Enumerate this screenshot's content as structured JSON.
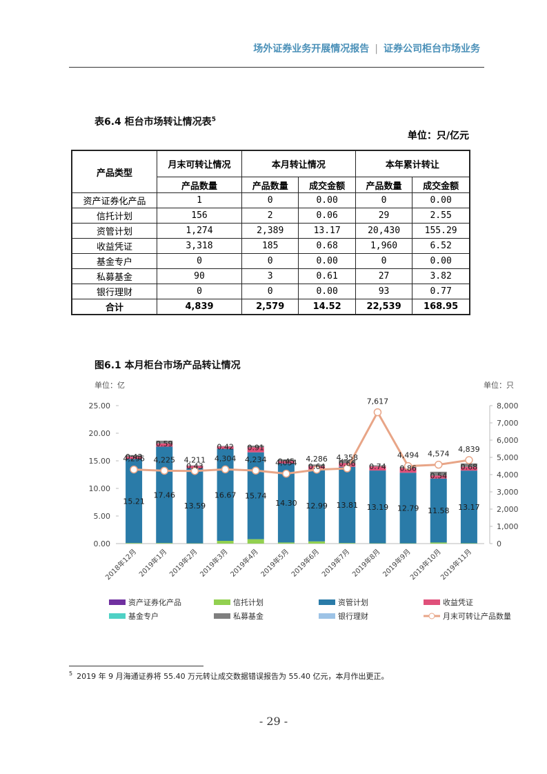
{
  "header": {
    "title": "场外证券业务开展情况报告",
    "separator": "|",
    "subtitle": "证券公司柜台市场业务"
  },
  "table": {
    "title": "表6.4 柜台市场转让情况表",
    "footnote_ref": "5",
    "unit": "单位：只/亿元",
    "header": [
      "产品类型",
      "月末可转让情况",
      "本月转让情况",
      "本年累计转让"
    ],
    "subheader": [
      "产品数量",
      "产品数量",
      "成交金额",
      "产品数量",
      "成交金额"
    ],
    "rows": [
      [
        "资产证券化产品",
        "1",
        "0",
        "0.00",
        "0",
        "0.00"
      ],
      [
        "信托计划",
        "156",
        "2",
        "0.06",
        "29",
        "2.55"
      ],
      [
        "资管计划",
        "1,274",
        "2,389",
        "13.17",
        "20,430",
        "155.29"
      ],
      [
        "收益凭证",
        "3,318",
        "185",
        "0.68",
        "1,960",
        "6.52"
      ],
      [
        "基金专户",
        "0",
        "0",
        "0.00",
        "0",
        "0.00"
      ],
      [
        "私募基金",
        "90",
        "3",
        "0.61",
        "27",
        "3.82"
      ],
      [
        "银行理财",
        "0",
        "0",
        "0.00",
        "93",
        "0.77"
      ],
      [
        "合计",
        "4,839",
        "2,579",
        "14.52",
        "22,539",
        "168.95"
      ]
    ]
  },
  "figure": {
    "title": "图6.1 本月柜台市场产品转让情况"
  },
  "chart_data": {
    "type": "bar",
    "stacked": true,
    "y_label": "单位：亿",
    "y2_label": "单位：只",
    "categories": [
      "2018年12月",
      "2019年1月",
      "2019年2月",
      "2019年3月",
      "2019年4月",
      "2019年5月",
      "2019年6月",
      "2019年7月",
      "2019年8月",
      "2019年9月",
      "2019年10月",
      "2019年11月"
    ],
    "ylim": [
      0,
      25
    ],
    "yticks": [
      {
        "value": 0,
        "label": "0.00"
      },
      {
        "value": 5,
        "label": "5.00"
      },
      {
        "value": 10,
        "label": "10.00"
      },
      {
        "value": 15,
        "label": "15.00"
      },
      {
        "value": 20,
        "label": "20.00"
      },
      {
        "value": 25,
        "label": "25.00"
      }
    ],
    "y2lim": [
      0,
      8000
    ],
    "y2ticks": [
      0,
      {
        "value": 1000,
        "label": "1,000"
      },
      {
        "value": 2000,
        "label": "2,000"
      },
      {
        "value": 3000,
        "label": "3,000"
      },
      {
        "value": 4000,
        "label": "4,000"
      },
      {
        "value": 5000,
        "label": "5,000"
      },
      {
        "value": 6000,
        "label": "6,000"
      },
      {
        "value": 7000,
        "label": "7,000"
      },
      {
        "value": 8000,
        "label": "8,000"
      }
    ],
    "series": [
      {
        "name": "资产证券化产品",
        "color": "#7030a0",
        "values": [
          0,
          0,
          0,
          0,
          0,
          0,
          0,
          0,
          0,
          0,
          0,
          0
        ]
      },
      {
        "name": "信托计划",
        "color": "#92d050",
        "values": [
          0.1,
          0.1,
          0.05,
          0.5,
          0.8,
          0.2,
          0.4,
          0.1,
          0.05,
          0.05,
          0.2,
          0.06
        ]
      },
      {
        "name": "资管计划",
        "color": "#2a7ba8",
        "values": [
          15.21,
          17.46,
          13.59,
          16.67,
          15.74,
          14.3,
          12.99,
          13.81,
          13.19,
          12.79,
          11.58,
          13.17
        ],
        "value_labels": [
          "15.21",
          "17.46",
          "13.59",
          "16.67",
          "15.74",
          "14.30",
          "12.99",
          "13.81",
          "13.19",
          "12.79",
          "11.58",
          "13.17"
        ]
      },
      {
        "name": "收益凭证",
        "color": "#e0507a",
        "values": [
          0.43,
          0.59,
          0.43,
          0.42,
          0.91,
          0.45,
          0.64,
          0.66,
          0.74,
          0.86,
          0.54,
          0.68
        ],
        "value_labels": [
          "0.43",
          "0.59",
          "0.43",
          "0.42",
          "0.91",
          "0.45",
          "0.64",
          "0.66",
          "0.74",
          "0.86",
          "0.54",
          "0.68"
        ]
      },
      {
        "name": "基金专户",
        "color": "#4fd1c5",
        "values": [
          0,
          0,
          0,
          0,
          0,
          0,
          0,
          0,
          0,
          0,
          0,
          0
        ]
      },
      {
        "name": "私募基金",
        "color": "#7f7f7f",
        "values": [
          0.3,
          0.5,
          0.1,
          0.1,
          0.3,
          0.3,
          0.3,
          0.6,
          0.2,
          0.2,
          0.7,
          0.61
        ]
      },
      {
        "name": "银行理财",
        "color": "#9dc3e6",
        "values": [
          0,
          0,
          0,
          0,
          0,
          0,
          0,
          0,
          0,
          0,
          0,
          0
        ]
      },
      {
        "name": "月末可转让产品数量",
        "type": "line",
        "axis": "y2",
        "color": "#e8a587",
        "values": [
          4296,
          4225,
          4211,
          4304,
          4234,
          4054,
          4286,
          4358,
          7617,
          4494,
          4574,
          4839
        ],
        "value_labels": [
          "4,296",
          "4,225",
          "4,211",
          "4,304",
          "4,234",
          "4,054",
          "4,286",
          "4,358",
          "7,617",
          "4,494",
          "4,574",
          "4,839"
        ]
      }
    ]
  },
  "footnote": {
    "number": "5",
    "text": "2019 年 9 月海通证券将 55.40 万元转让成交数据错误报告为 55.40 亿元，本月作出更正。"
  },
  "page_number": "- 29 -"
}
